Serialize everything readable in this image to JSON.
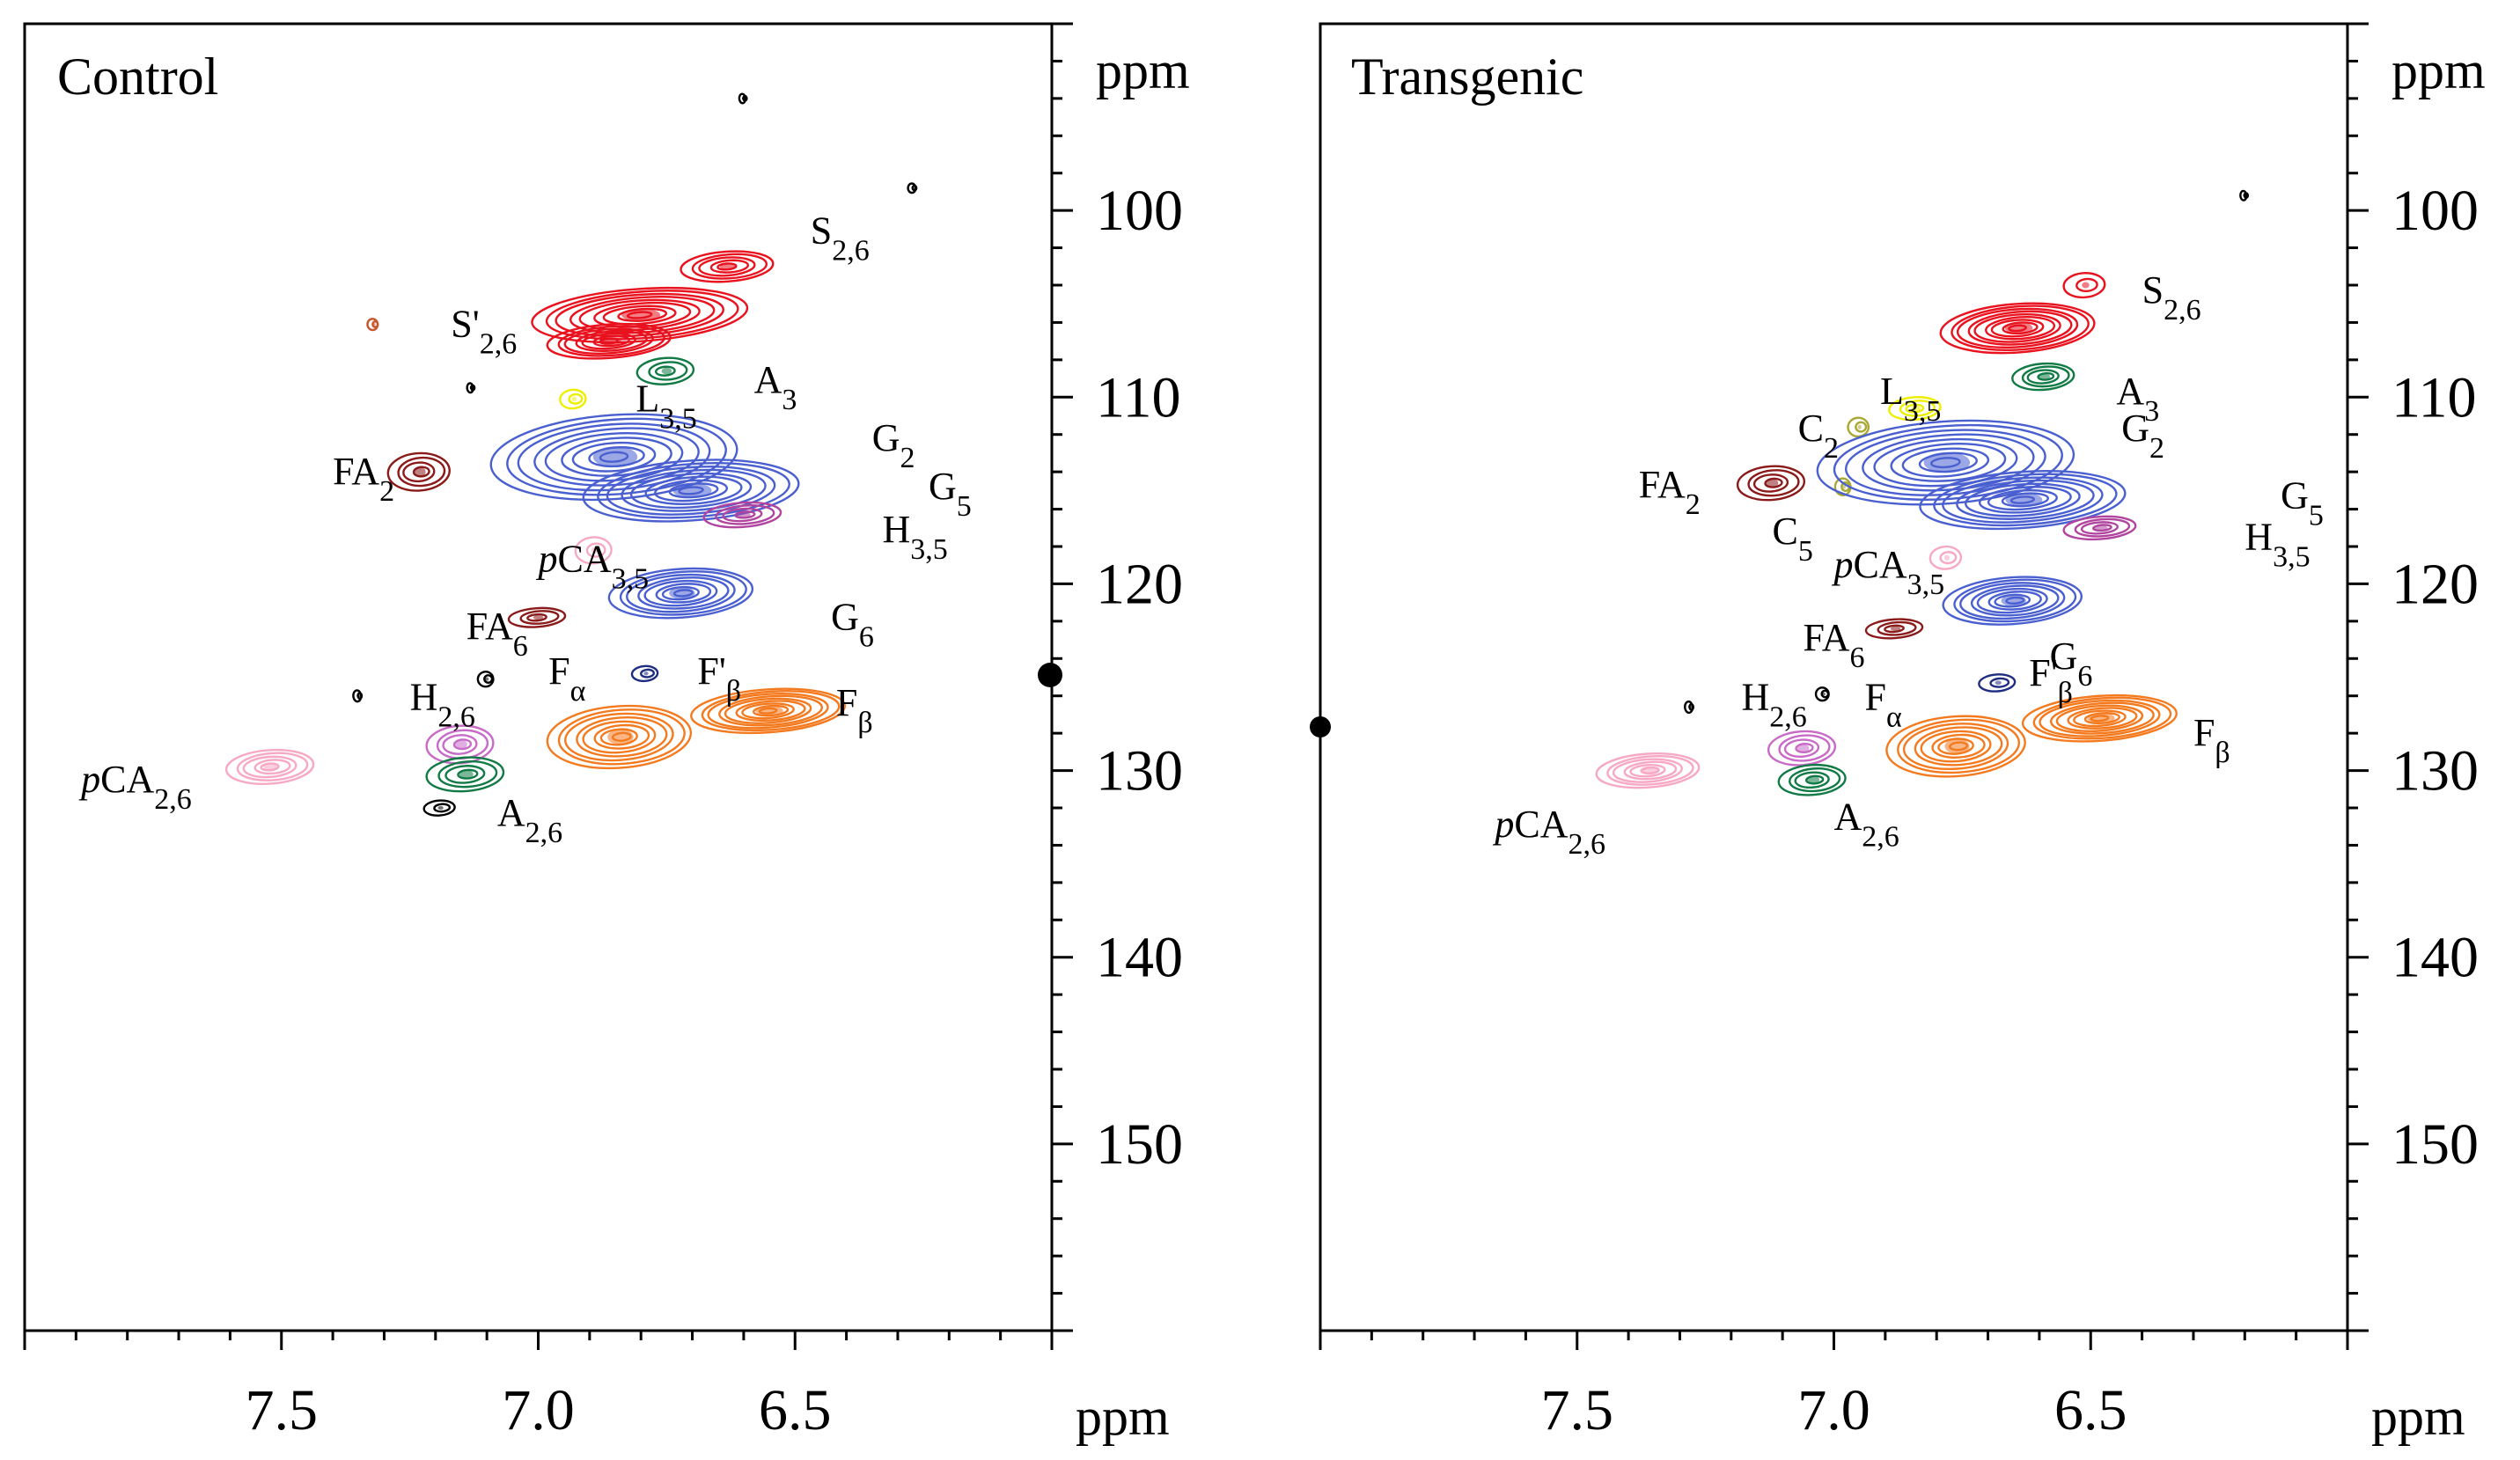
{
  "chart_data": [
    {
      "type": "contour",
      "title": "Control",
      "xlabel": "ppm",
      "ylabel": "ppm",
      "xlim": [
        8.0,
        6.0
      ],
      "ylim": [
        160,
        90
      ],
      "x_ticks": [
        7.5,
        7.0,
        6.5
      ],
      "x_tick_labels": [
        "7.5",
        "7.0",
        "6.5"
      ],
      "y_ticks": [
        100,
        110,
        120,
        130,
        140,
        150
      ],
      "y_tick_labels": [
        "100",
        "110",
        "120",
        "130",
        "140",
        "150"
      ],
      "peaks": [
        {
          "x": 6.63,
          "y": 103.0,
          "w": 0.18,
          "h": 1.6,
          "color": "#e8131f"
        },
        {
          "x": 6.8,
          "y": 105.6,
          "w": 0.42,
          "h": 2.8,
          "color": "#e8131f"
        },
        {
          "x": 6.86,
          "y": 107.0,
          "w": 0.24,
          "h": 1.8,
          "color": "#e8131f"
        },
        {
          "x": 6.75,
          "y": 108.6,
          "w": 0.11,
          "h": 1.4,
          "color": "#117a45"
        },
        {
          "x": 6.93,
          "y": 110.1,
          "w": 0.05,
          "h": 1.0,
          "color": "#eeee00"
        },
        {
          "x": 7.23,
          "y": 114.0,
          "w": 0.12,
          "h": 2.0,
          "color": "#8b1a1a"
        },
        {
          "x": 6.85,
          "y": 113.2,
          "w": 0.48,
          "h": 4.5,
          "color": "#4a5fd0"
        },
        {
          "x": 6.7,
          "y": 115.0,
          "w": 0.42,
          "h": 3.2,
          "color": "#4a5fd0"
        },
        {
          "x": 6.6,
          "y": 116.3,
          "w": 0.15,
          "h": 1.3,
          "color": "#b0449e"
        },
        {
          "x": 6.89,
          "y": 118.2,
          "w": 0.07,
          "h": 1.4,
          "color": "#f7a8c4"
        },
        {
          "x": 6.72,
          "y": 120.5,
          "w": 0.28,
          "h": 2.6,
          "color": "#4a5fd0"
        },
        {
          "x": 7.0,
          "y": 121.8,
          "w": 0.11,
          "h": 1.0,
          "color": "#8b1a1a"
        },
        {
          "x": 6.79,
          "y": 124.8,
          "w": 0.05,
          "h": 0.8,
          "color": "#1f2d80"
        },
        {
          "x": 6.55,
          "y": 126.8,
          "w": 0.3,
          "h": 2.3,
          "color": "#f47a1f"
        },
        {
          "x": 6.84,
          "y": 128.2,
          "w": 0.28,
          "h": 3.3,
          "color": "#f47a1f"
        },
        {
          "x": 7.15,
          "y": 128.6,
          "w": 0.13,
          "h": 2.0,
          "color": "#c86bc8"
        },
        {
          "x": 7.14,
          "y": 130.2,
          "w": 0.15,
          "h": 1.8,
          "color": "#117a45"
        },
        {
          "x": 7.52,
          "y": 129.8,
          "w": 0.17,
          "h": 1.8,
          "color": "#f7a8c4"
        },
        {
          "x": 7.19,
          "y": 132.0,
          "w": 0.06,
          "h": 0.8,
          "color": "#000000"
        },
        {
          "x": 7.35,
          "y": 126.0,
          "w": 0.015,
          "h": 0.6,
          "color": "#000000"
        },
        {
          "x": 7.1,
          "y": 125.1,
          "w": 0.03,
          "h": 0.8,
          "color": "#000000"
        },
        {
          "x": 6.6,
          "y": 94.0,
          "w": 0.012,
          "h": 0.5,
          "color": "#000000"
        },
        {
          "x": 6.27,
          "y": 98.8,
          "w": 0.015,
          "h": 0.5,
          "color": "#000000"
        },
        {
          "x": 7.13,
          "y": 109.5,
          "w": 0.012,
          "h": 0.5,
          "color": "#000000"
        },
        {
          "x": 7.32,
          "y": 106.1,
          "w": 0.02,
          "h": 0.6,
          "color": "#c8552b"
        }
      ],
      "annotations": [
        {
          "text": "S2,6",
          "x": 6.47,
          "y": 101.0
        },
        {
          "text": "S'2,6",
          "x": 7.17,
          "y": 106.0
        },
        {
          "text": "A3",
          "x": 6.58,
          "y": 109.0
        },
        {
          "text": "L3,5",
          "x": 6.81,
          "y": 110.0
        },
        {
          "text": "G2",
          "x": 6.35,
          "y": 112.1
        },
        {
          "text": "FA2",
          "x": 7.4,
          "y": 113.9
        },
        {
          "text": "G5",
          "x": 6.24,
          "y": 114.7
        },
        {
          "text": "H3,5",
          "x": 6.33,
          "y": 117.0
        },
        {
          "text": "pCA3,5",
          "x": 7.0,
          "y": 118.6
        },
        {
          "text": "G6",
          "x": 6.43,
          "y": 121.7
        },
        {
          "text": "FA6",
          "x": 7.14,
          "y": 122.2
        },
        {
          "text": "Fα",
          "x": 6.98,
          "y": 124.6
        },
        {
          "text": "F'β",
          "x": 6.69,
          "y": 124.6
        },
        {
          "text": "H2,6",
          "x": 7.25,
          "y": 126.0
        },
        {
          "text": "Fβ",
          "x": 6.42,
          "y": 126.3
        },
        {
          "text": "pCA2,6",
          "x": 7.89,
          "y": 130.4
        },
        {
          "text": "A2,6",
          "x": 7.08,
          "y": 132.2
        }
      ]
    },
    {
      "type": "contour",
      "title": "Transgenic",
      "xlabel": "ppm",
      "ylabel": "ppm",
      "xlim": [
        8.0,
        6.0
      ],
      "ylim": [
        160,
        90
      ],
      "x_ticks": [
        7.5,
        7.0,
        6.5
      ],
      "x_tick_labels": [
        "7.5",
        "7.0",
        "6.5"
      ],
      "y_ticks": [
        100,
        110,
        120,
        130,
        140,
        150
      ],
      "y_tick_labels": [
        "100",
        "110",
        "120",
        "130",
        "140",
        "150"
      ],
      "peaks": [
        {
          "x": 6.51,
          "y": 104.0,
          "w": 0.08,
          "h": 1.3,
          "color": "#e8131f"
        },
        {
          "x": 6.64,
          "y": 106.3,
          "w": 0.3,
          "h": 2.6,
          "color": "#e8131f"
        },
        {
          "x": 6.59,
          "y": 108.9,
          "w": 0.12,
          "h": 1.4,
          "color": "#117a45"
        },
        {
          "x": 6.84,
          "y": 110.6,
          "w": 0.1,
          "h": 1.2,
          "color": "#eeee00"
        },
        {
          "x": 6.95,
          "y": 111.6,
          "w": 0.04,
          "h": 1.0,
          "color": "#a8a832"
        },
        {
          "x": 6.98,
          "y": 114.8,
          "w": 0.03,
          "h": 0.9,
          "color": "#a8a832"
        },
        {
          "x": 7.12,
          "y": 114.6,
          "w": 0.13,
          "h": 1.8,
          "color": "#8b1a1a"
        },
        {
          "x": 6.78,
          "y": 113.5,
          "w": 0.5,
          "h": 4.4,
          "color": "#4a5fd0"
        },
        {
          "x": 6.63,
          "y": 115.5,
          "w": 0.4,
          "h": 3.0,
          "color": "#4a5fd0"
        },
        {
          "x": 6.48,
          "y": 117.0,
          "w": 0.14,
          "h": 1.2,
          "color": "#b0449e"
        },
        {
          "x": 6.78,
          "y": 118.6,
          "w": 0.06,
          "h": 1.2,
          "color": "#f7a8c4"
        },
        {
          "x": 6.65,
          "y": 120.9,
          "w": 0.27,
          "h": 2.5,
          "color": "#4a5fd0"
        },
        {
          "x": 6.88,
          "y": 122.4,
          "w": 0.11,
          "h": 1.0,
          "color": "#8b1a1a"
        },
        {
          "x": 6.68,
          "y": 125.3,
          "w": 0.07,
          "h": 0.9,
          "color": "#1f2d80"
        },
        {
          "x": 6.48,
          "y": 127.2,
          "w": 0.3,
          "h": 2.4,
          "color": "#f47a1f"
        },
        {
          "x": 6.76,
          "y": 128.7,
          "w": 0.27,
          "h": 3.2,
          "color": "#f47a1f"
        },
        {
          "x": 7.06,
          "y": 128.8,
          "w": 0.13,
          "h": 1.8,
          "color": "#c86bc8"
        },
        {
          "x": 7.04,
          "y": 130.5,
          "w": 0.13,
          "h": 1.6,
          "color": "#117a45"
        },
        {
          "x": 7.36,
          "y": 130.0,
          "w": 0.2,
          "h": 1.8,
          "color": "#f7a8c4"
        },
        {
          "x": 7.28,
          "y": 126.6,
          "w": 0.015,
          "h": 0.6,
          "color": "#000000"
        },
        {
          "x": 7.02,
          "y": 125.9,
          "w": 0.025,
          "h": 0.7,
          "color": "#000000"
        },
        {
          "x": 6.2,
          "y": 99.2,
          "w": 0.012,
          "h": 0.5,
          "color": "#000000"
        }
      ],
      "annotations": [
        {
          "text": "S2,6",
          "x": 6.4,
          "y": 104.2
        },
        {
          "text": "L3,5",
          "x": 6.91,
          "y": 109.6
        },
        {
          "text": "A3",
          "x": 6.45,
          "y": 109.6
        },
        {
          "text": "C2",
          "x": 7.07,
          "y": 111.6
        },
        {
          "text": "G2",
          "x": 6.44,
          "y": 111.6
        },
        {
          "text": "FA2",
          "x": 7.38,
          "y": 114.6
        },
        {
          "text": "G5",
          "x": 6.13,
          "y": 115.2
        },
        {
          "text": "C5",
          "x": 7.12,
          "y": 117.1
        },
        {
          "text": "H3,5",
          "x": 6.2,
          "y": 117.4
        },
        {
          "text": "pCA3,5",
          "x": 7.0,
          "y": 118.9
        },
        {
          "text": "FA6",
          "x": 7.06,
          "y": 122.8
        },
        {
          "text": "G6",
          "x": 6.58,
          "y": 123.8
        },
        {
          "text": "F'β",
          "x": 6.62,
          "y": 124.7
        },
        {
          "text": "Fα",
          "x": 6.94,
          "y": 126.0
        },
        {
          "text": "H2,6",
          "x": 7.18,
          "y": 126.0
        },
        {
          "text": "Fβ",
          "x": 6.3,
          "y": 127.9
        },
        {
          "text": "pCA2,6",
          "x": 7.66,
          "y": 132.8
        },
        {
          "text": "A2,6",
          "x": 7.0,
          "y": 132.4
        }
      ]
    }
  ]
}
